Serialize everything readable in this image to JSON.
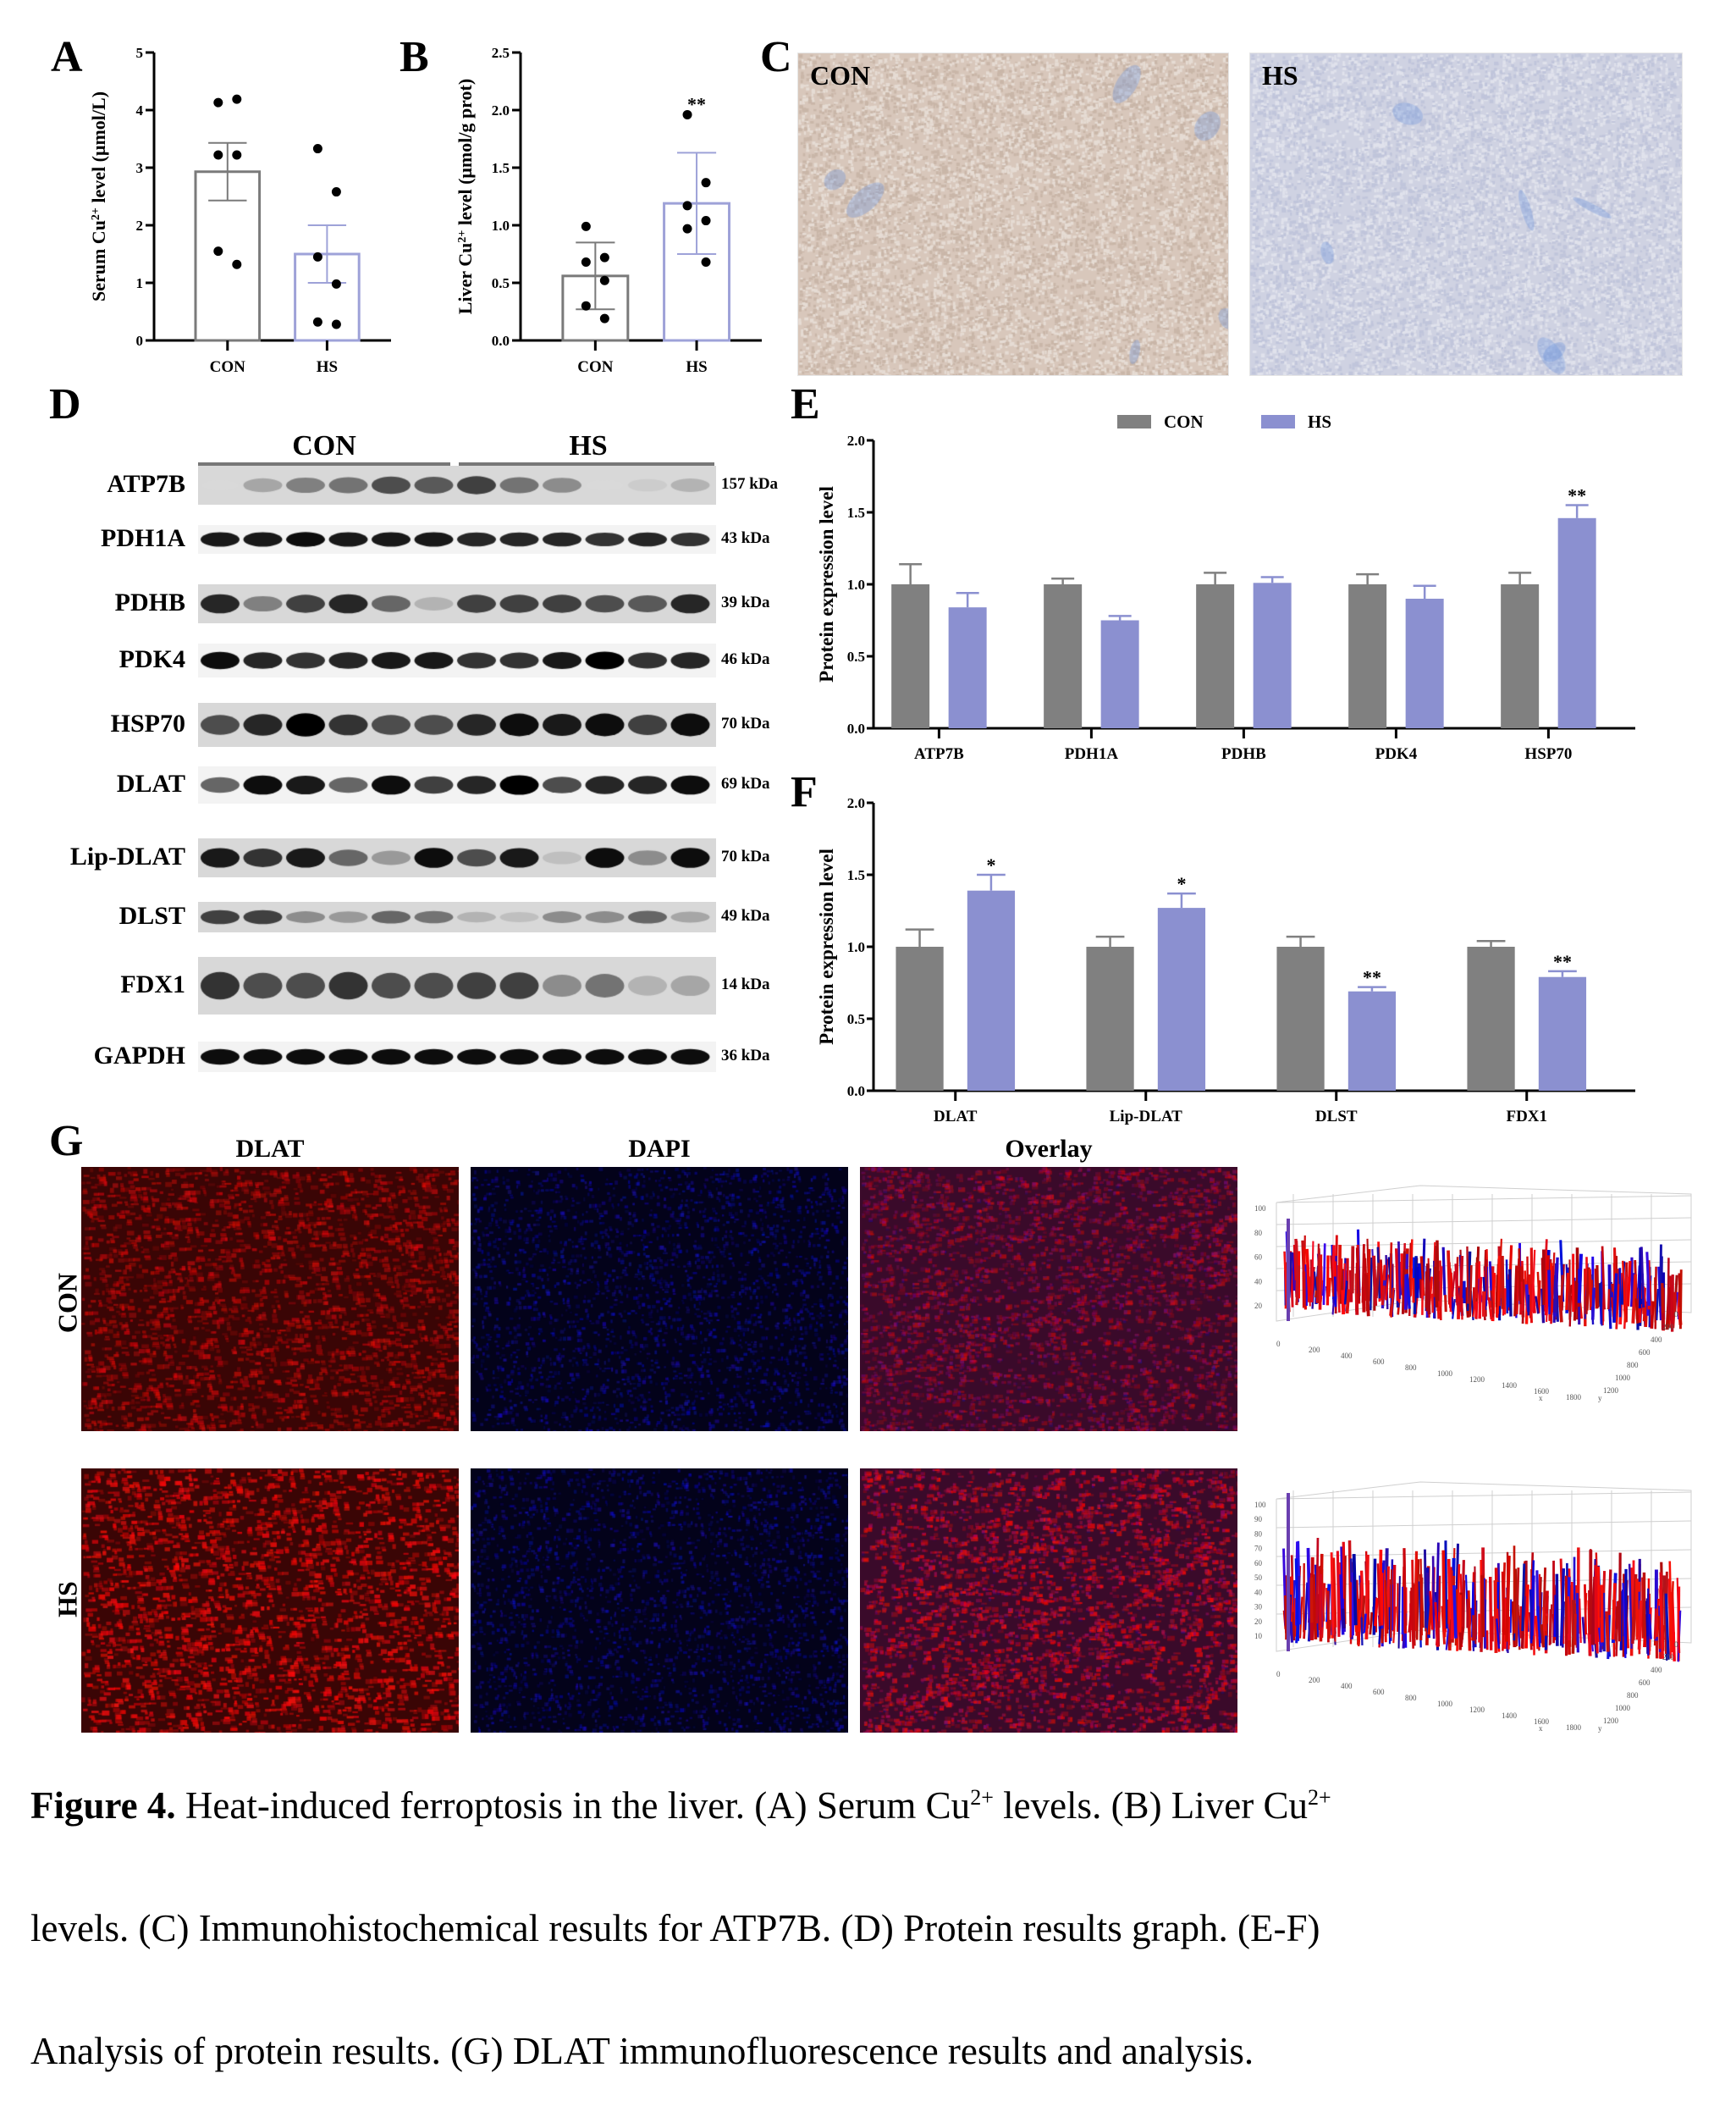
{
  "figure": {
    "caption_line1_bold": "Figure 4.",
    "caption_line1": " Heat-induced ferroptosis in the liver. (A) Serum Cu",
    "caption_sup1": "2+",
    "caption_line1b": " levels. (B) Liver Cu",
    "caption_sup2": "2+",
    "caption_line2": "levels. (C) Immunohistochemical results for ATP7B. (D) Protein results graph. (E-F)",
    "caption_line3": "Analysis of protein results. (G) DLAT immunofluorescence results and analysis."
  },
  "panels": {
    "A": "A",
    "B": "B",
    "C": "C",
    "D": "D",
    "E": "E",
    "F": "F",
    "G": "G"
  },
  "colors": {
    "con": "#808080",
    "hs": "#8b90d0",
    "con_outline": "#7a7a7a",
    "hs_outline": "#9ea2d8"
  },
  "panel_C": {
    "row_label": "ATP7B",
    "images": [
      {
        "label": "CON",
        "tint": "#d9c9bd"
      },
      {
        "label": "HS",
        "tint": "#cfd3e3"
      }
    ]
  },
  "panel_D": {
    "group_labels": [
      "CON",
      "HS"
    ],
    "blots": [
      {
        "name": "ATP7B",
        "kda": "157 kDa"
      },
      {
        "name": "PDH1A",
        "kda": "43 kDa"
      },
      {
        "name": "PDHB",
        "kda": "39 kDa"
      },
      {
        "name": "PDK4",
        "kda": "46 kDa"
      },
      {
        "name": "HSP70",
        "kda": "70 kDa"
      },
      {
        "name": "DLAT",
        "kda": "69 kDa"
      },
      {
        "name": "Lip-DLAT",
        "kda": "70 kDa"
      },
      {
        "name": "DLST",
        "kda": "49 kDa"
      },
      {
        "name": "FDX1",
        "kda": "14 kDa"
      },
      {
        "name": "GAPDH",
        "kda": "36 kDa"
      }
    ]
  },
  "panel_G": {
    "columns": [
      "DLAT",
      "DAPI",
      "Overlay"
    ],
    "rows": [
      "CON",
      "HS"
    ],
    "surface_plot": {
      "con": {
        "z_ticks": [
          "100",
          "80",
          "60",
          "40",
          "20"
        ],
        "x_ticks": [
          "0",
          "200",
          "400",
          "600",
          "800",
          "1000",
          "1200",
          "1400",
          "1600",
          "1800"
        ],
        "y_ticks": [
          "0",
          "200",
          "400",
          "600",
          "800",
          "1000",
          "1200"
        ],
        "x_label": "x",
        "y_label": "y",
        "z_label": "z"
      },
      "hs": {
        "z_ticks": [
          "100",
          "90",
          "80",
          "70",
          "60",
          "50",
          "40",
          "30",
          "20",
          "10"
        ],
        "x_ticks": [
          "0",
          "200",
          "400",
          "600",
          "800",
          "1000",
          "1200",
          "1400",
          "1600",
          "1800"
        ],
        "y_ticks": [
          "0",
          "200",
          "400",
          "600",
          "800",
          "1000",
          "1200"
        ],
        "x_label": "x",
        "y_label": "y",
        "z_label": "z"
      }
    }
  },
  "chart_data": [
    {
      "id": "A",
      "type": "bar",
      "title": "",
      "xlabel": "",
      "ylabel": "Serum Cu2+ level (μmol/L)",
      "ylabel_main": "Serum Cu",
      "ylabel_sup": "2+",
      "ylabel_rest": " level (μmol/L)",
      "categories": [
        "CON",
        "HS"
      ],
      "values": [
        2.93,
        1.5
      ],
      "error": [
        0.5,
        0.5
      ],
      "points": [
        [
          4.13,
          4.19,
          3.22,
          3.22,
          1.55,
          1.32
        ],
        [
          3.33,
          2.58,
          1.45,
          0.98,
          0.32,
          0.28
        ]
      ],
      "ylim": [
        0,
        5
      ],
      "yticks": [
        "0",
        "1",
        "2",
        "3",
        "4",
        "5"
      ],
      "significance": [
        "",
        ""
      ],
      "style": "outline"
    },
    {
      "id": "B",
      "type": "bar",
      "title": "",
      "xlabel": "",
      "ylabel": "Liver Cu2+ level (μmol/g prot)",
      "ylabel_main": "Liver Cu",
      "ylabel_sup": "2+",
      "ylabel_rest": " level (μmol/g prot)",
      "categories": [
        "CON",
        "HS"
      ],
      "values": [
        0.56,
        1.19
      ],
      "error": [
        0.29,
        0.44
      ],
      "points": [
        [
          0.99,
          0.72,
          0.68,
          0.52,
          0.3,
          0.19
        ],
        [
          1.96,
          1.37,
          1.17,
          1.04,
          0.97,
          0.68
        ]
      ],
      "ylim": [
        0,
        2.5
      ],
      "yticks": [
        "0.0",
        "0.5",
        "1.0",
        "1.5",
        "2.0",
        "2.5"
      ],
      "significance": [
        "",
        "**"
      ],
      "style": "outline"
    },
    {
      "id": "E",
      "type": "bar",
      "title": "",
      "xlabel": "",
      "ylabel": "Protein expression level",
      "legend": [
        "CON",
        "HS"
      ],
      "legend_position": "top",
      "categories": [
        "ATP7B",
        "PDH1A",
        "PDHB",
        "PDK4",
        "HSP70"
      ],
      "series": [
        {
          "name": "CON",
          "values": [
            1.0,
            1.0,
            1.0,
            1.0,
            1.0
          ],
          "error": [
            0.14,
            0.04,
            0.08,
            0.07,
            0.08
          ]
        },
        {
          "name": "HS",
          "values": [
            0.84,
            0.75,
            1.01,
            0.9,
            1.46
          ],
          "error": [
            0.1,
            0.03,
            0.04,
            0.09,
            0.09
          ]
        }
      ],
      "significance": [
        "",
        "",
        "",
        "",
        "**"
      ],
      "ylim": [
        0,
        2.0
      ],
      "yticks": [
        "0.0",
        "0.5",
        "1.0",
        "1.5",
        "2.0"
      ]
    },
    {
      "id": "F",
      "type": "bar",
      "title": "",
      "xlabel": "",
      "ylabel": "Protein expression level",
      "legend": [
        "CON",
        "HS"
      ],
      "categories": [
        "DLAT",
        "Lip-DLAT",
        "DLST",
        "FDX1"
      ],
      "series": [
        {
          "name": "CON",
          "values": [
            1.0,
            1.0,
            1.0,
            1.0
          ],
          "error": [
            0.12,
            0.07,
            0.07,
            0.04
          ]
        },
        {
          "name": "HS",
          "values": [
            1.39,
            1.27,
            0.69,
            0.79
          ],
          "error": [
            0.11,
            0.1,
            0.03,
            0.04
          ]
        }
      ],
      "significance": [
        "*",
        "*",
        "**",
        "**"
      ],
      "ylim": [
        0,
        2.0
      ],
      "yticks": [
        "0.0",
        "0.5",
        "1.0",
        "1.5",
        "2.0"
      ]
    }
  ]
}
